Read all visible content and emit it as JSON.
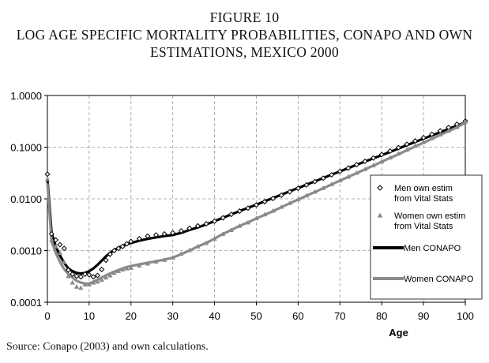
{
  "figure": {
    "label": "FIGURE 10",
    "title_line1": "LOG AGE SPECIFIC MORTALITY PROBABILITIES, CONAPO AND OWN",
    "title_line2": "ESTIMATIONS, MEXICO 2000",
    "source": "Source: Conapo (2003) and own calculations."
  },
  "chart_data": {
    "type": "line",
    "title": "LOG AGE SPECIFIC MORTALITY PROBABILITIES, CONAPO AND OWN ESTIMATIONS, MEXICO 2000",
    "xlabel": "Age",
    "ylabel": "",
    "xlim": [
      0,
      100
    ],
    "ylim": [
      0.0001,
      1
    ],
    "yscale": "log",
    "x_ticks": [
      0,
      10,
      20,
      30,
      40,
      50,
      60,
      70,
      80,
      90,
      100
    ],
    "y_ticks": [
      0.0001,
      0.001,
      0.01,
      0.1,
      1
    ],
    "y_tick_labels": [
      "0.0001",
      "0.0010",
      "0.0100",
      "0.1000",
      "1.0000"
    ],
    "grid": "dashed vertical and horizontal",
    "legend_position": "right",
    "series": [
      {
        "name": "Men own estim from Vital Stats",
        "legend_line1": "Men own estim",
        "legend_line2": "from Vital Stats",
        "marker": "diamond",
        "color": "#111111",
        "x": [
          0,
          1,
          2,
          3,
          4,
          5,
          6,
          7,
          8,
          9,
          10,
          11,
          12,
          13,
          14,
          15,
          16,
          17,
          18,
          19,
          20,
          22,
          24,
          26,
          28,
          30,
          32,
          34,
          36,
          38,
          40,
          42,
          44,
          46,
          48,
          50,
          52,
          54,
          56,
          58,
          60,
          62,
          64,
          66,
          68,
          70,
          72,
          74,
          76,
          78,
          80,
          82,
          84,
          86,
          88,
          90,
          92,
          94,
          96,
          98,
          100
        ],
        "values": [
          0.03,
          0.0021,
          0.0016,
          0.0013,
          0.0011,
          0.00042,
          0.00035,
          0.00032,
          0.00031,
          0.00035,
          0.00034,
          0.00031,
          0.00033,
          0.00043,
          0.00065,
          0.00085,
          0.001,
          0.0011,
          0.0012,
          0.00135,
          0.0015,
          0.0017,
          0.0019,
          0.002,
          0.0021,
          0.0022,
          0.0024,
          0.0027,
          0.003,
          0.0033,
          0.0037,
          0.0043,
          0.005,
          0.0058,
          0.0066,
          0.0076,
          0.0088,
          0.0102,
          0.0118,
          0.0137,
          0.016,
          0.0186,
          0.0216,
          0.0251,
          0.0292,
          0.034,
          0.0394,
          0.0458,
          0.0532,
          0.0618,
          0.072,
          0.084,
          0.098,
          0.114,
          0.132,
          0.153,
          0.178,
          0.207,
          0.24,
          0.278,
          0.32
        ]
      },
      {
        "name": "Women own estim from Vital Stats",
        "legend_line1": "Women own estim",
        "legend_line2": "from Vital Stats",
        "marker": "triangle",
        "color": "#8a8a8a",
        "x": [
          0,
          1,
          2,
          3,
          4,
          5,
          6,
          7,
          8,
          9,
          10,
          11,
          12,
          13,
          14,
          15,
          16,
          17,
          18,
          19,
          20,
          22,
          24,
          26,
          28,
          30,
          32,
          34,
          36,
          38,
          40,
          42,
          44,
          46,
          48,
          50,
          52,
          54,
          56,
          58,
          60,
          62,
          64,
          66,
          68,
          70,
          72,
          74,
          76,
          78,
          80,
          82,
          84,
          86,
          88,
          90,
          92,
          94,
          96,
          98,
          100
        ],
        "values": [
          0.024,
          0.0016,
          0.0012,
          0.0009,
          0.0006,
          0.00032,
          0.00024,
          0.0002,
          0.00019,
          0.00022,
          0.00022,
          0.00024,
          0.00025,
          0.00027,
          0.0003,
          0.00033,
          0.00037,
          0.0004,
          0.00043,
          0.00045,
          0.00046,
          0.00051,
          0.00056,
          0.00061,
          0.00066,
          0.00073,
          0.00087,
          0.00102,
          0.0012,
          0.0014,
          0.0017,
          0.0021,
          0.0025,
          0.003,
          0.0035,
          0.0042,
          0.005,
          0.0059,
          0.007,
          0.0083,
          0.0098,
          0.0116,
          0.0137,
          0.0162,
          0.0192,
          0.0227,
          0.0269,
          0.0318,
          0.0376,
          0.0445,
          0.053,
          0.063,
          0.075,
          0.089,
          0.106,
          0.126,
          0.149,
          0.176,
          0.208,
          0.246,
          0.31
        ]
      },
      {
        "name": "Men CONAPO",
        "legend_line1": "Men CONAPO",
        "legend_line2": "",
        "marker": "line",
        "color": "#000000",
        "x": [
          0,
          1,
          2,
          3,
          4,
          5,
          6,
          7,
          8,
          9,
          10,
          11,
          12,
          13,
          14,
          15,
          16,
          17,
          18,
          19,
          20,
          22,
          24,
          26,
          28,
          30,
          32,
          34,
          36,
          38,
          40,
          42,
          44,
          46,
          48,
          50,
          52,
          54,
          56,
          58,
          60,
          62,
          64,
          66,
          68,
          70,
          72,
          74,
          76,
          78,
          80,
          82,
          84,
          86,
          88,
          90,
          92,
          94,
          96,
          98,
          100
        ],
        "values": [
          0.025,
          0.0022,
          0.0012,
          0.0008,
          0.00058,
          0.00045,
          0.0004,
          0.00037,
          0.00036,
          0.00037,
          0.0004,
          0.00045,
          0.00053,
          0.00064,
          0.00077,
          0.0009,
          0.00102,
          0.00113,
          0.00123,
          0.00132,
          0.0014,
          0.00155,
          0.00168,
          0.0018,
          0.0019,
          0.002,
          0.0022,
          0.0025,
          0.0028,
          0.0032,
          0.0037,
          0.0043,
          0.005,
          0.0058,
          0.0067,
          0.0077,
          0.009,
          0.0104,
          0.012,
          0.014,
          0.0162,
          0.0188,
          0.0218,
          0.0253,
          0.0294,
          0.034,
          0.0394,
          0.0456,
          0.0527,
          0.061,
          0.07,
          0.081,
          0.094,
          0.109,
          0.126,
          0.146,
          0.169,
          0.195,
          0.225,
          0.26,
          0.3
        ]
      },
      {
        "name": "Women CONAPO",
        "legend_line1": "Women CONAPO",
        "legend_line2": "",
        "marker": "line",
        "color": "#8a8a8a",
        "x": [
          0,
          1,
          2,
          3,
          4,
          5,
          6,
          7,
          8,
          9,
          10,
          11,
          12,
          13,
          14,
          15,
          16,
          17,
          18,
          19,
          20,
          22,
          24,
          26,
          28,
          30,
          32,
          34,
          36,
          38,
          40,
          42,
          44,
          46,
          48,
          50,
          52,
          54,
          56,
          58,
          60,
          62,
          64,
          66,
          68,
          70,
          72,
          74,
          76,
          78,
          80,
          82,
          84,
          86,
          88,
          90,
          92,
          94,
          96,
          98,
          100
        ],
        "values": [
          0.02,
          0.0015,
          0.0009,
          0.0006,
          0.00044,
          0.00035,
          0.0003,
          0.00026,
          0.00024,
          0.00023,
          0.00023,
          0.00025,
          0.00027,
          0.0003,
          0.00033,
          0.00036,
          0.00039,
          0.00042,
          0.00045,
          0.00048,
          0.0005,
          0.00054,
          0.00058,
          0.00062,
          0.00067,
          0.00073,
          0.00085,
          0.001,
          0.0012,
          0.0014,
          0.0017,
          0.0021,
          0.0025,
          0.003,
          0.0035,
          0.0042,
          0.0049,
          0.0058,
          0.0069,
          0.0082,
          0.0097,
          0.0115,
          0.0136,
          0.016,
          0.019,
          0.0225,
          0.0266,
          0.0315,
          0.0372,
          0.044,
          0.052,
          0.062,
          0.073,
          0.087,
          0.103,
          0.122,
          0.145,
          0.172,
          0.204,
          0.242,
          0.3
        ]
      }
    ]
  }
}
